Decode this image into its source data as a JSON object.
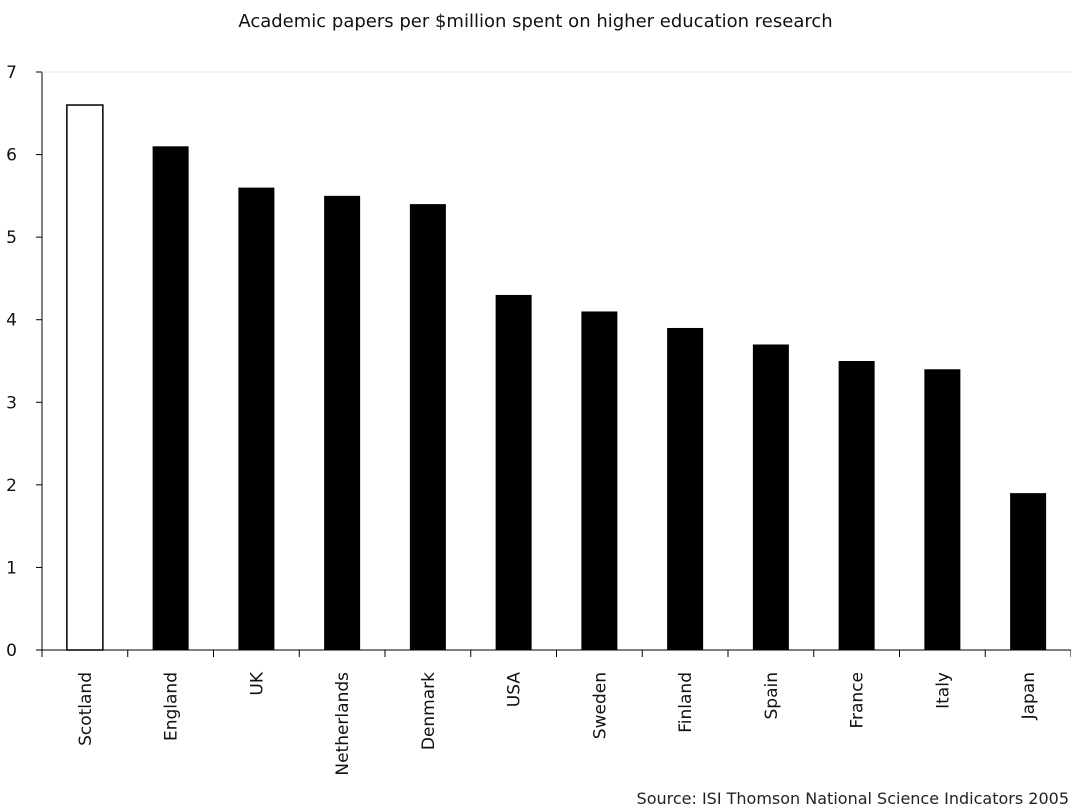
{
  "chart_data": {
    "type": "bar",
    "title": "Academic papers per $million spent on higher education research",
    "xlabel": "",
    "ylabel": "",
    "categories": [
      "Scotland",
      "England",
      "UK",
      "Netherlands",
      "Denmark",
      "USA",
      "Sweden",
      "Finland",
      "Spain",
      "France",
      "Italy",
      "Japan"
    ],
    "values": [
      6.6,
      6.1,
      5.6,
      5.5,
      5.4,
      4.3,
      4.1,
      3.9,
      3.7,
      3.5,
      3.4,
      1.9
    ],
    "ylim": [
      0,
      7
    ],
    "yticks": [
      0,
      1,
      2,
      3,
      4,
      5,
      6,
      7
    ],
    "highlight_category": "Scotland",
    "colors": {
      "bar": "#000000",
      "highlight_fill": "#ffffff",
      "highlight_stroke": "#000000"
    },
    "grid": false,
    "source": "Source: ISI Thomson National Science Indicators 2005"
  }
}
